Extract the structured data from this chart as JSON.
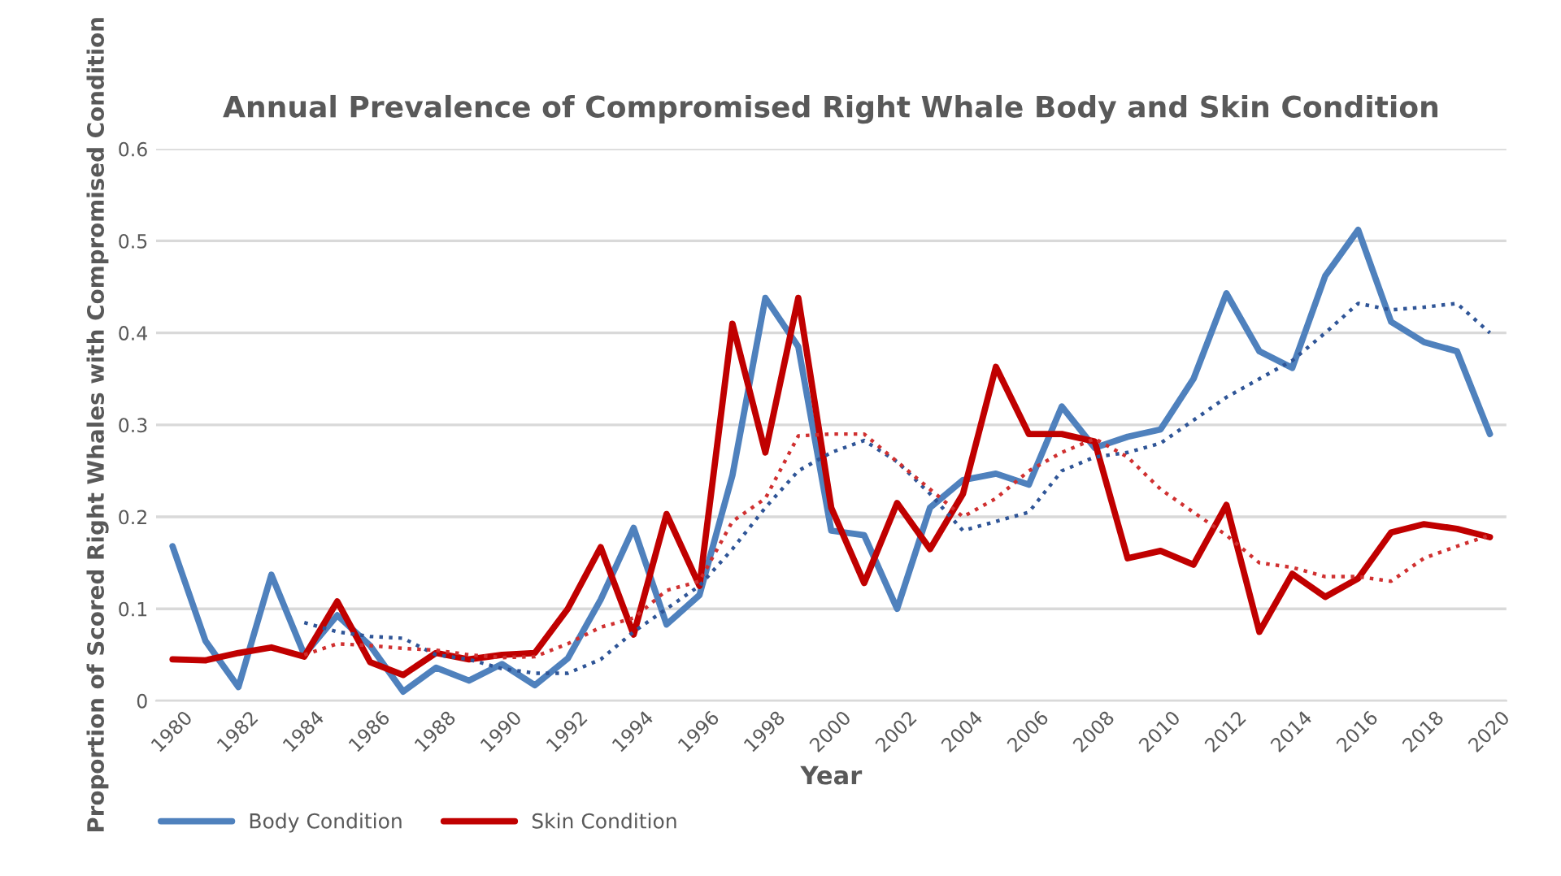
{
  "chart_data": {
    "type": "line",
    "title": "Annual Prevalence of Compromised Right Whale Body and Skin Condition",
    "xlabel": "Year",
    "ylabel": "Proportion of Scored Right Whales with Compromised Condition",
    "x": [
      1980,
      1981,
      1982,
      1983,
      1984,
      1985,
      1986,
      1987,
      1988,
      1989,
      1990,
      1991,
      1992,
      1993,
      1994,
      1995,
      1996,
      1997,
      1998,
      1999,
      2000,
      2001,
      2002,
      2003,
      2004,
      2005,
      2006,
      2007,
      2008,
      2009,
      2010,
      2011,
      2012,
      2013,
      2014,
      2015,
      2016,
      2017,
      2018,
      2019,
      2020
    ],
    "series": [
      {
        "name": "Body Condition",
        "color": "#4f81bd",
        "line_style": "solid",
        "values": [
          0.168,
          0.065,
          0.015,
          0.137,
          0.05,
          0.093,
          0.06,
          0.01,
          0.036,
          0.022,
          0.04,
          0.017,
          0.046,
          0.11,
          0.188,
          0.083,
          0.115,
          0.245,
          0.438,
          0.385,
          0.185,
          0.18,
          0.1,
          0.21,
          0.24,
          0.247,
          0.235,
          0.32,
          0.275,
          0.287,
          0.295,
          0.35,
          0.443,
          0.38,
          0.362,
          0.462,
          0.512,
          0.412,
          0.39,
          0.38,
          0.29
        ]
      },
      {
        "name": "Skin Condition",
        "color": "#c00000",
        "line_style": "solid",
        "values": [
          0.045,
          0.044,
          0.052,
          0.058,
          0.048,
          0.108,
          0.042,
          0.028,
          0.052,
          0.045,
          0.05,
          0.052,
          0.1,
          0.167,
          0.072,
          0.203,
          0.125,
          0.41,
          0.27,
          0.438,
          0.21,
          0.128,
          0.215,
          0.165,
          0.225,
          0.363,
          0.29,
          0.29,
          0.282,
          0.155,
          0.163,
          0.148,
          0.213,
          0.075,
          0.138,
          0.113,
          0.133,
          0.183,
          0.192,
          0.187,
          0.178
        ]
      },
      {
        "color": "#2f5597",
        "line_style": "dotted",
        "x": [
          1984,
          1985,
          1986,
          1987,
          1988,
          1989,
          1990,
          1991,
          1992,
          1993,
          1994,
          1995,
          1996,
          1997,
          1998,
          1999,
          2000,
          2001,
          2002,
          2003,
          2004,
          2005,
          2006,
          2007,
          2008,
          2009,
          2010,
          2011,
          2012,
          2013,
          2014,
          2015,
          2016,
          2017,
          2018,
          2019,
          2020
        ],
        "values": [
          0.085,
          0.075,
          0.07,
          0.068,
          0.05,
          0.045,
          0.035,
          0.03,
          0.03,
          0.045,
          0.075,
          0.1,
          0.125,
          0.165,
          0.21,
          0.25,
          0.27,
          0.283,
          0.26,
          0.225,
          0.185,
          0.195,
          0.205,
          0.25,
          0.265,
          0.27,
          0.28,
          0.305,
          0.33,
          0.35,
          0.37,
          0.4,
          0.432,
          0.425,
          0.428,
          0.432,
          0.4
        ]
      },
      {
        "color": "#d03030",
        "line_style": "dotted",
        "x": [
          1984,
          1985,
          1986,
          1987,
          1988,
          1989,
          1990,
          1991,
          1992,
          1993,
          1994,
          1995,
          1996,
          1997,
          1998,
          1999,
          2000,
          2001,
          2002,
          2003,
          2004,
          2005,
          2006,
          2007,
          2008,
          2009,
          2010,
          2011,
          2012,
          2013,
          2014,
          2015,
          2016,
          2017,
          2018,
          2019,
          2020
        ],
        "values": [
          0.05,
          0.062,
          0.06,
          0.057,
          0.055,
          0.05,
          0.047,
          0.048,
          0.062,
          0.08,
          0.09,
          0.12,
          0.13,
          0.195,
          0.22,
          0.288,
          0.29,
          0.29,
          0.26,
          0.23,
          0.2,
          0.22,
          0.25,
          0.27,
          0.285,
          0.265,
          0.23,
          0.205,
          0.18,
          0.15,
          0.145,
          0.135,
          0.135,
          0.13,
          0.155,
          0.168,
          0.18
        ]
      }
    ],
    "xlim": [
      1979.5,
      2020.5
    ],
    "xticks": [
      1980,
      1982,
      1984,
      1986,
      1988,
      1990,
      1992,
      1994,
      1996,
      1998,
      2000,
      2002,
      2004,
      2006,
      2008,
      2010,
      2012,
      2014,
      2016,
      2018,
      2020
    ],
    "ylim": [
      0,
      0.6
    ],
    "yticks": [
      0,
      0.1,
      0.2,
      0.3,
      0.4,
      0.5,
      0.6
    ],
    "grid": "y",
    "legend": "bottom left",
    "marker": "none"
  }
}
